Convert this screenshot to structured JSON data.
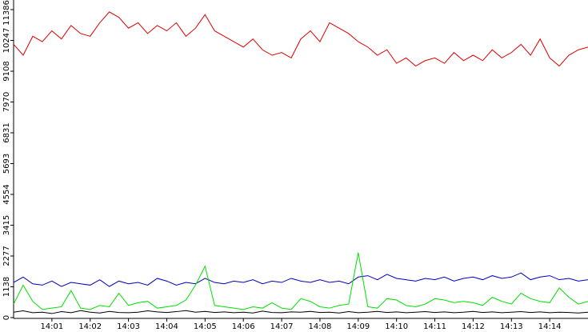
{
  "chart_data": {
    "type": "line",
    "xlim": [
      "14:00",
      "14:15"
    ],
    "xticks": [
      "14:01",
      "14:02",
      "14:03",
      "14:04",
      "14:05",
      "14:06",
      "14:07",
      "14:08",
      "14:09",
      "14:10",
      "14:11",
      "14:12",
      "14:13",
      "14:14"
    ],
    "ylim": [
      0,
      11386
    ],
    "yticks": [
      0,
      1138,
      2277,
      3415,
      4554,
      5693,
      6831,
      7970,
      9108,
      10247,
      11386
    ],
    "series": [
      {
        "color": "#e00000",
        "values": [
          10100,
          9700,
          10400,
          10200,
          10600,
          10300,
          10800,
          10500,
          10400,
          10900,
          11300,
          11100,
          10700,
          10900,
          10500,
          10800,
          10600,
          10900,
          10400,
          10700,
          11200,
          10600,
          10400,
          10200,
          10000,
          10300,
          9900,
          9700,
          9800,
          9600,
          10300,
          10600,
          10200,
          10900,
          10700,
          10500,
          10200,
          10000,
          9700,
          9900,
          9400,
          9600,
          9300,
          9500,
          9600,
          9400,
          9800,
          9500,
          9700,
          9500,
          9900,
          9600,
          9800,
          10100,
          9700,
          10300,
          9600,
          9300,
          9700,
          9900,
          10000
        ]
      },
      {
        "color": "#0000c0",
        "values": [
          1300,
          1500,
          1250,
          1200,
          1350,
          1150,
          1300,
          1250,
          1200,
          1400,
          1150,
          1350,
          1250,
          1300,
          1200,
          1450,
          1350,
          1200,
          1300,
          1250,
          1450,
          1300,
          1250,
          1350,
          1300,
          1400,
          1250,
          1350,
          1300,
          1450,
          1350,
          1300,
          1400,
          1300,
          1350,
          1250,
          1500,
          1550,
          1400,
          1600,
          1450,
          1400,
          1350,
          1450,
          1400,
          1500,
          1350,
          1450,
          1500,
          1400,
          1550,
          1450,
          1500,
          1650,
          1400,
          1500,
          1550,
          1400,
          1450,
          1350,
          1400
        ]
      },
      {
        "color": "#00e000",
        "values": [
          500,
          1200,
          600,
          300,
          350,
          400,
          1000,
          350,
          300,
          450,
          400,
          900,
          450,
          550,
          600,
          350,
          400,
          450,
          650,
          1200,
          1900,
          450,
          400,
          350,
          300,
          400,
          350,
          550,
          350,
          300,
          700,
          600,
          400,
          350,
          450,
          500,
          2400,
          400,
          350,
          700,
          650,
          450,
          400,
          500,
          700,
          650,
          550,
          600,
          550,
          450,
          750,
          600,
          500,
          900,
          700,
          600,
          550,
          1100,
          750,
          500,
          600
        ]
      },
      {
        "color": "#000000",
        "values": [
          200,
          250,
          180,
          200,
          150,
          220,
          180,
          260,
          200,
          170,
          230,
          190,
          180,
          200,
          250,
          210,
          190,
          220,
          260,
          200,
          230,
          190,
          210,
          180,
          200,
          170,
          240,
          190,
          180,
          210,
          200,
          230,
          190,
          200,
          170,
          220,
          180,
          200,
          230,
          190,
          210,
          180,
          200,
          220,
          190,
          210,
          180,
          200,
          230,
          190,
          210,
          180,
          200,
          220,
          190,
          210,
          180,
          200,
          190,
          170,
          200
        ]
      }
    ]
  }
}
